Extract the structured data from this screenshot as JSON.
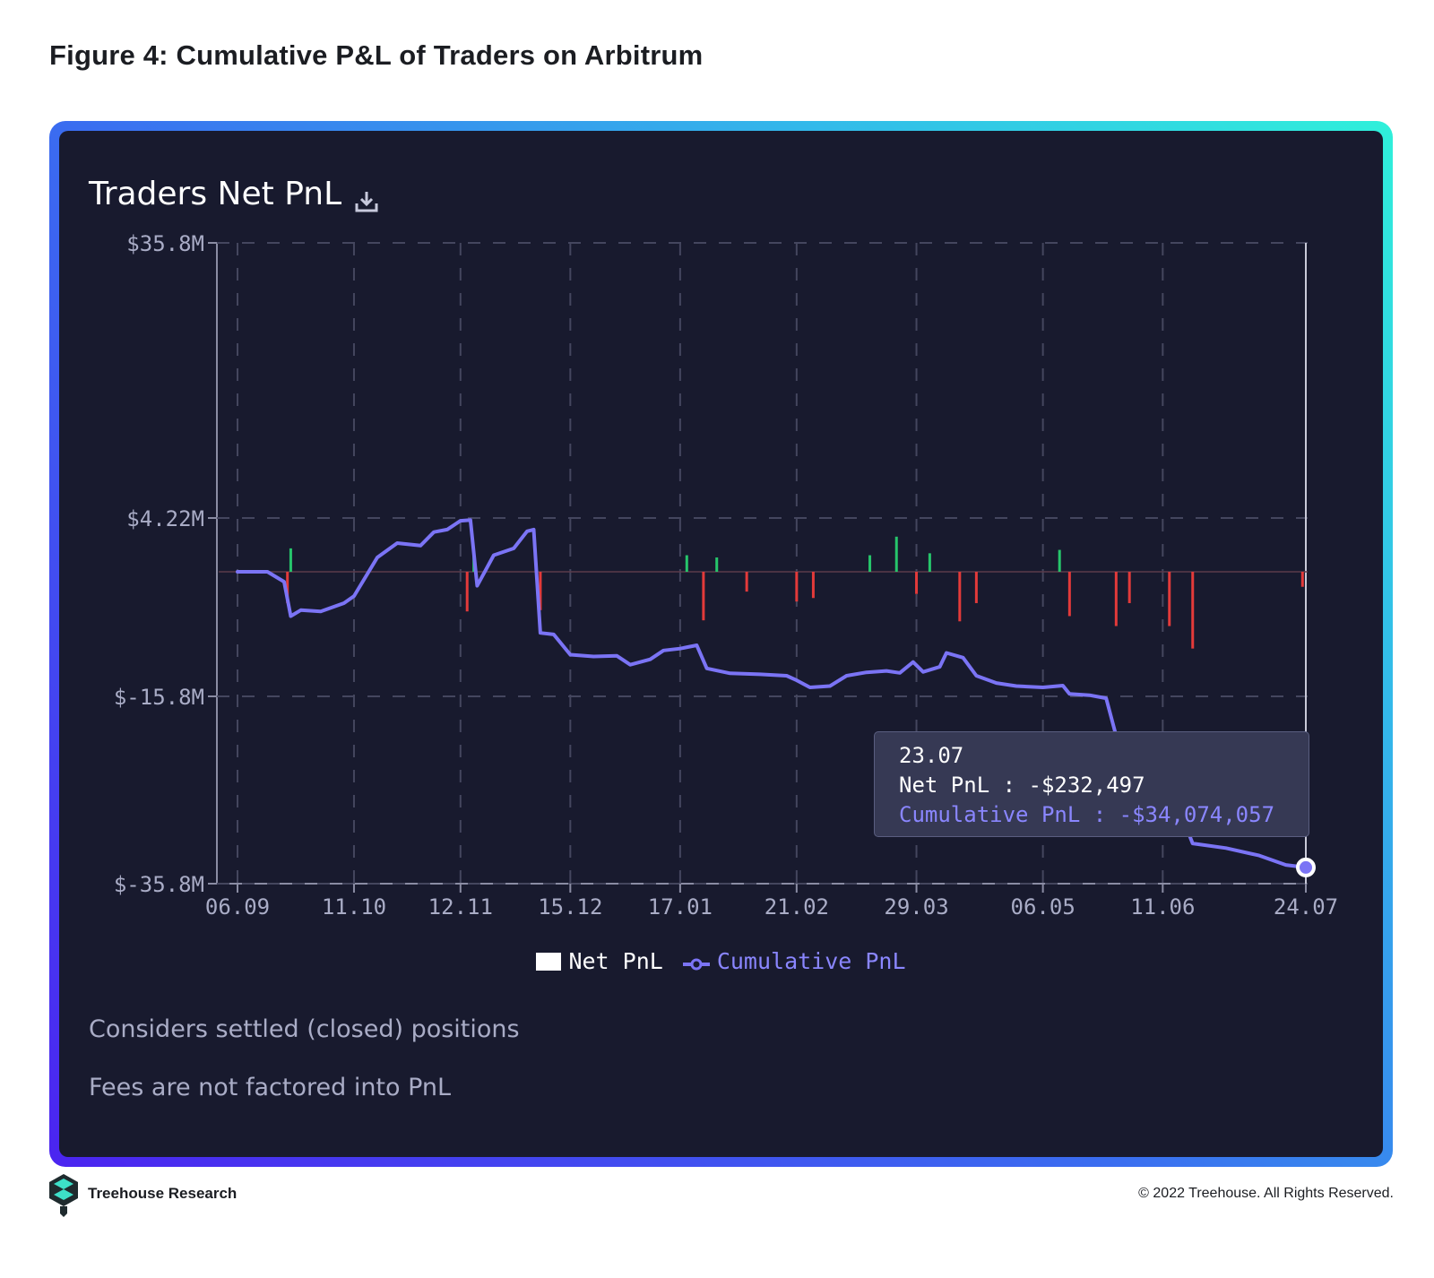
{
  "figure_title": "Figure 4: Cumulative P&L of Traders on Arbitrum",
  "card": {
    "title": "Traders Net PnL",
    "download_icon": "download-icon",
    "notes": [
      "Considers settled (closed) positions",
      "Fees are not factored into PnL"
    ]
  },
  "tooltip": {
    "date": "23.07",
    "net_pnl": "Net PnL : -$232,497",
    "cumulative_pnl": "Cumulative PnL : -$34,074,057"
  },
  "legend": {
    "net_label": "Net PnL",
    "cum_label": "Cumulative PnL"
  },
  "colors": {
    "card_bg": "#181a2e",
    "line": "#7b74f5",
    "positive_bar": "#26c56b",
    "negative_bar": "#e33a3a",
    "axis_text": "#a9acc6"
  },
  "footer": {
    "brand": "Treehouse Research",
    "copyright": "© 2022 Treehouse. All Rights Reserved."
  },
  "chart_data": {
    "type": "line",
    "y_axis": {
      "scale": "symlog",
      "ticks": [
        "$35.8M",
        "$4.22M",
        "$-15.8M",
        "$-35.8M"
      ],
      "tick_values_m": [
        35.8,
        4.22,
        -15.8,
        -35.8
      ]
    },
    "x_axis": {
      "ticks": [
        "06.09",
        "11.10",
        "12.11",
        "15.12",
        "17.01",
        "21.02",
        "29.03",
        "06.05",
        "11.06",
        "24.07"
      ]
    },
    "grid": true,
    "legend": "bottom-center",
    "series": [
      {
        "name": "Cumulative PnL",
        "unit": "USD millions",
        "points": [
          [
            "06.09",
            0.0
          ],
          [
            "15.09",
            0.0
          ],
          [
            "20.09",
            -0.1
          ],
          [
            "22.09",
            -2.0
          ],
          [
            "25.09",
            -1.5
          ],
          [
            "01.10",
            -1.6
          ],
          [
            "08.10",
            -1.0
          ],
          [
            "11.10",
            -0.6
          ],
          [
            "18.10",
            0.3
          ],
          [
            "24.10",
            1.2
          ],
          [
            "31.10",
            1.0
          ],
          [
            "04.11",
            2.3
          ],
          [
            "08.11",
            2.6
          ],
          [
            "12.11",
            3.8
          ],
          [
            "15.11",
            3.9
          ],
          [
            "17.11",
            -0.2
          ],
          [
            "22.11",
            0.4
          ],
          [
            "28.11",
            0.8
          ],
          [
            "02.12",
            2.4
          ],
          [
            "04.12",
            2.6
          ],
          [
            "06.12",
            -3.8
          ],
          [
            "10.12",
            -4.0
          ],
          [
            "15.12",
            -7.0
          ],
          [
            "22.12",
            -7.3
          ],
          [
            "29.12",
            -7.2
          ],
          [
            "02.01",
            -8.8
          ],
          [
            "08.01",
            -7.8
          ],
          [
            "12.01",
            -6.3
          ],
          [
            "17.01",
            -6.0
          ],
          [
            "22.01",
            -5.5
          ],
          [
            "25.01",
            -9.5
          ],
          [
            "01.02",
            -10.5
          ],
          [
            "10.02",
            -10.7
          ],
          [
            "18.02",
            -11.0
          ],
          [
            "21.02",
            -12.0
          ],
          [
            "25.02",
            -13.6
          ],
          [
            "03.03",
            -13.3
          ],
          [
            "08.03",
            -11.0
          ],
          [
            "14.03",
            -10.3
          ],
          [
            "20.03",
            -10.0
          ],
          [
            "24.03",
            -10.4
          ],
          [
            "28.03",
            -8.3
          ],
          [
            "31.03",
            -10.2
          ],
          [
            "05.04",
            -9.2
          ],
          [
            "07.04",
            -6.7
          ],
          [
            "12.04",
            -7.5
          ],
          [
            "16.04",
            -11.0
          ],
          [
            "22.04",
            -12.6
          ],
          [
            "28.04",
            -13.3
          ],
          [
            "06.05",
            -13.6
          ],
          [
            "12.05",
            -13.2
          ],
          [
            "14.05",
            -15.2
          ],
          [
            "20.05",
            -15.5
          ],
          [
            "25.05",
            -16.0
          ],
          [
            "28.05",
            -20.0
          ],
          [
            "11.06",
            -20.8
          ],
          [
            "15.06",
            -27.0
          ],
          [
            "20.06",
            -31.5
          ],
          [
            "30.06",
            -32.0
          ],
          [
            "10.07",
            -32.8
          ],
          [
            "18.07",
            -33.8
          ],
          [
            "24.07",
            -34.07
          ]
        ]
      },
      {
        "name": "Net PnL",
        "unit": "USD millions",
        "bars_note": "daily bars, largest values",
        "bars": [
          [
            "21.09",
            -1.0
          ],
          [
            "22.09",
            0.8
          ],
          [
            "14.11",
            -1.6
          ],
          [
            "16.11",
            0.35
          ],
          [
            "06.12",
            -1.5
          ],
          [
            "19.01",
            0.4
          ],
          [
            "24.01",
            -2.4
          ],
          [
            "28.01",
            0.3
          ],
          [
            "06.02",
            -0.4
          ],
          [
            "21.02",
            -0.9
          ],
          [
            "26.02",
            -0.7
          ],
          [
            "15.03",
            0.4
          ],
          [
            "23.03",
            1.8
          ],
          [
            "29.03",
            -0.5
          ],
          [
            "02.04",
            0.5
          ],
          [
            "11.04",
            -2.5
          ],
          [
            "16.04",
            -1.0
          ],
          [
            "11.05",
            0.7
          ],
          [
            "14.05",
            -2.0
          ],
          [
            "28.05",
            -3.0
          ],
          [
            "01.06",
            -1.0
          ],
          [
            "13.06",
            -3.0
          ],
          [
            "20.06",
            -6.0
          ],
          [
            "23.07",
            -0.23
          ]
        ]
      }
    ]
  }
}
